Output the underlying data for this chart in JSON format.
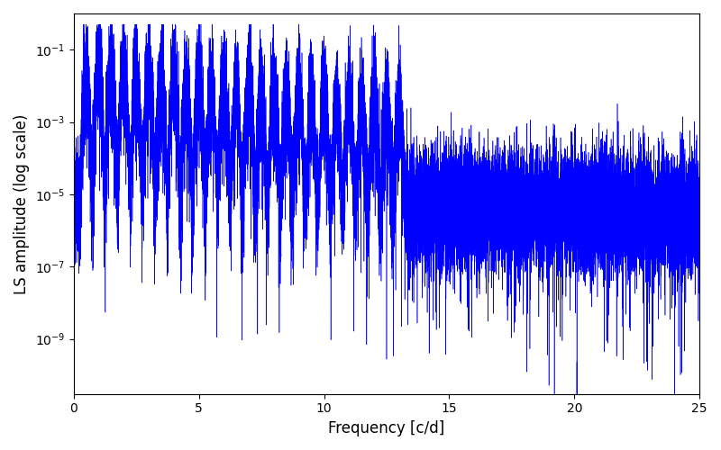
{
  "xlabel": "Frequency [c/d]",
  "ylabel": "LS amplitude (log scale)",
  "xlim": [
    0,
    25
  ],
  "ylim": [
    3e-11,
    1.0
  ],
  "line_color": "#0000ff",
  "linewidth": 0.4,
  "figsize": [
    8.0,
    5.0
  ],
  "dpi": 100,
  "yscale": "log",
  "background_color": "#ffffff"
}
